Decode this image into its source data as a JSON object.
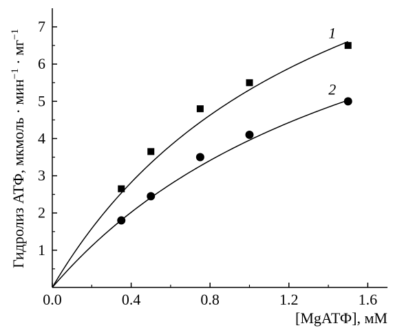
{
  "chart_data": {
    "type": "scatter",
    "title": "",
    "xlabel": "[MgАТФ], мМ",
    "ylabel_main": "Гидролиз АТФ, мкмоль · мин",
    "ylabel_exp1": "−1",
    "ylabel_mid": " · мг",
    "ylabel_exp2": "−1",
    "xlim": [
      0.0,
      1.7
    ],
    "ylim": [
      0,
      7.5
    ],
    "xticks": [
      {
        "value": 0.0,
        "label": "0.0"
      },
      {
        "value": 0.4,
        "label": "0.4"
      },
      {
        "value": 0.8,
        "label": "0.8"
      },
      {
        "value": 1.2,
        "label": "1.2"
      },
      {
        "value": 1.6,
        "label": "1.6"
      }
    ],
    "yticks": [
      {
        "value": 1,
        "label": "1"
      },
      {
        "value": 2,
        "label": "2"
      },
      {
        "value": 3,
        "label": "3"
      },
      {
        "value": 4,
        "label": "4"
      },
      {
        "value": 5,
        "label": "5"
      },
      {
        "value": 6,
        "label": "6"
      },
      {
        "value": 7,
        "label": "7"
      }
    ],
    "grid": false,
    "series": [
      {
        "name": "1",
        "marker": "square",
        "points": [
          {
            "x": 0.35,
            "y": 2.65
          },
          {
            "x": 0.5,
            "y": 3.65
          },
          {
            "x": 0.75,
            "y": 4.8
          },
          {
            "x": 1.0,
            "y": 5.5
          },
          {
            "x": 1.5,
            "y": 6.5
          }
        ],
        "fit": {
          "vmax": 12.9,
          "km": 1.43
        },
        "label_at": {
          "x": 1.42,
          "y": 6.7
        }
      },
      {
        "name": "2",
        "marker": "circle",
        "points": [
          {
            "x": 0.35,
            "y": 1.8
          },
          {
            "x": 0.5,
            "y": 2.45
          },
          {
            "x": 0.75,
            "y": 3.5
          },
          {
            "x": 1.0,
            "y": 4.1
          },
          {
            "x": 1.5,
            "y": 5.0
          }
        ],
        "fit": {
          "vmax": 11.0,
          "km": 1.78
        },
        "label_at": {
          "x": 1.42,
          "y": 5.18
        }
      }
    ]
  }
}
